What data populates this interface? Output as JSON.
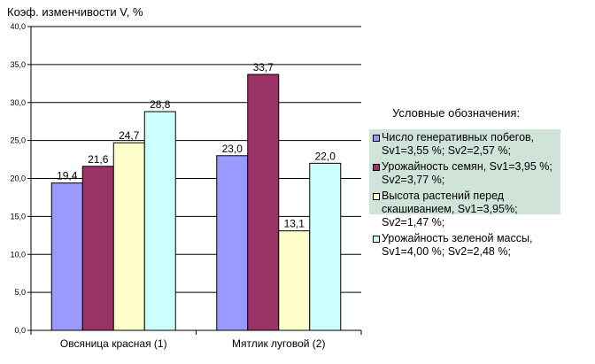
{
  "chart_data": {
    "type": "bar",
    "title": "",
    "ylabel": "Коэф. изменчивости V, %",
    "xlabel": "",
    "ylim": [
      0,
      40
    ],
    "yticks": [
      "0,0",
      "5,0",
      "10,0",
      "15,0",
      "20,0",
      "25,0",
      "30,0",
      "35,0",
      "40,0"
    ],
    "categories": [
      "Овсяница красная (1)",
      "Мятлик луговой (2)"
    ],
    "grid": true,
    "legend_title": "Условные обозначения:",
    "legend_position": "right",
    "series": [
      {
        "name": "Число генеративных побегов, Sv1=3,55 %; Sv2=2,57 %;",
        "values": [
          19.4,
          23.0
        ],
        "labels": [
          "19,4",
          "23,0"
        ],
        "color": "#9999ff"
      },
      {
        "name": "Урожайность семян, Sv1=3,95 %; Sv2=3,77 %;",
        "values": [
          21.6,
          33.7
        ],
        "labels": [
          "21,6",
          "33,7"
        ],
        "color": "#993366"
      },
      {
        "name": "Высота растений перед скашиванием, Sv1=3,95%; Sv2=1,47 %;",
        "values": [
          24.7,
          13.1
        ],
        "labels": [
          "24,7",
          "13,1"
        ],
        "color": "#ffffcc"
      },
      {
        "name": "Урожайность зеленой массы, Sv1=4,00 %; Sv2=2,48 %;",
        "values": [
          28.8,
          22.0
        ],
        "labels": [
          "28,8",
          "22,0"
        ],
        "color": "#ccffff"
      }
    ]
  }
}
